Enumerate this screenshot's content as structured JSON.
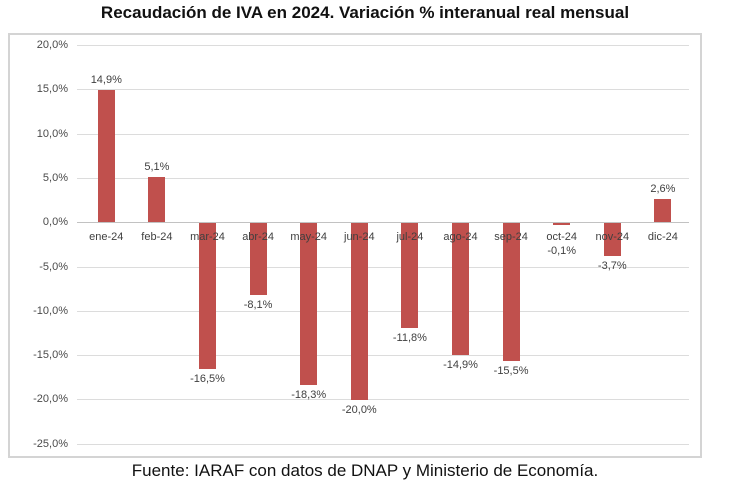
{
  "caption": "Fuente: IARAF con datos de DNAP y Ministerio de Economía.",
  "chart_data": {
    "type": "bar",
    "title": "Recaudación de IVA en 2024. Variación % interanual real mensual",
    "xlabel": "",
    "ylabel": "",
    "categories": [
      "ene-24",
      "feb-24",
      "mar-24",
      "abr-24",
      "may-24",
      "jun-24",
      "jul-24",
      "ago-24",
      "sep-24",
      "oct-24",
      "nov-24",
      "dic-24"
    ],
    "values": [
      14.9,
      5.1,
      -16.5,
      -8.1,
      -18.3,
      -20.0,
      -11.8,
      -14.9,
      -15.5,
      -0.1,
      -3.7,
      2.6
    ],
    "value_labels": [
      "14,9%",
      "5,1%",
      "-16,5%",
      "-8,1%",
      "-18,3%",
      "-20,0%",
      "-11,8%",
      "-14,9%",
      "-15,5%",
      "-0,1%",
      "-3,7%",
      "2,6%"
    ],
    "ylim": [
      -25,
      20
    ],
    "ytick_step": 5,
    "ytick_values": [
      20,
      15,
      10,
      5,
      0,
      -5,
      -10,
      -15,
      -20,
      -25
    ],
    "ytick_labels": [
      "20,0%",
      "15,0%",
      "10,0%",
      "5,0%",
      "0,0%",
      "-5,0%",
      "-10,0%",
      "-15,0%",
      "-20,0%",
      "-25,0%"
    ],
    "grid": true,
    "legend": "none",
    "bar_color": "#C0504D",
    "gridline_color": "#DCDCDC",
    "zero_line_color": "#C2C2C2",
    "label_color": "#3F3F3F"
  }
}
